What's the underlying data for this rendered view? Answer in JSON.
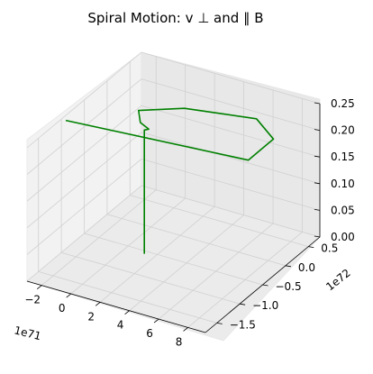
{
  "chart_data": {
    "type": "line",
    "title": "Spiral Motion: v ⊥ and ∥ B",
    "projection": "3d",
    "grid": true,
    "legend": "none",
    "series": [
      {
        "color": "#008000",
        "points": [
          [
            1.3e+71,
            -5.6e+71,
            0.0
          ],
          [
            1.3e+71,
            -5.6e+71,
            0.232
          ],
          [
            1.6e+71,
            -5.6e+71,
            0.236
          ],
          [
            9e+70,
            -5.2e+71,
            0.24
          ],
          [
            4e+70,
            -4e+71,
            0.25
          ],
          [
            2.6e+71,
            -1e+71,
            0.25
          ],
          [
            6.9e+71,
            1e+71,
            0.25
          ],
          [
            9e+71,
            -2e+71,
            0.25
          ],
          [
            9e+71,
            -7.5e+71,
            0.25
          ],
          [
            -2.7e+71,
            -1e+72,
            0.25
          ]
        ]
      }
    ],
    "x_axis": {
      "ticks": [
        "−2",
        "0",
        "2",
        "4",
        "6",
        "8"
      ],
      "tick_values": [
        -2e+71,
        0,
        2e+71,
        4e+71,
        6e+71,
        8e+71
      ],
      "offset_label": "1e71",
      "range": [
        -3e+71,
        9.2e+71
      ]
    },
    "y_axis": {
      "ticks": [
        "−1.5",
        "−1.0",
        "−0.5",
        "0.0",
        "0.5"
      ],
      "tick_values": [
        -1.5e+72,
        -1e+72,
        -5e+71,
        0,
        5e+71
      ],
      "offset_label": "1e72",
      "range": [
        -1.75e+72,
        7.5e+71
      ]
    },
    "z_axis": {
      "ticks": [
        "0.00",
        "0.05",
        "0.10",
        "0.15",
        "0.20",
        "0.25"
      ],
      "tick_values": [
        0,
        0.05,
        0.1,
        0.15,
        0.2,
        0.25
      ],
      "range": [
        0,
        0.25
      ]
    }
  }
}
